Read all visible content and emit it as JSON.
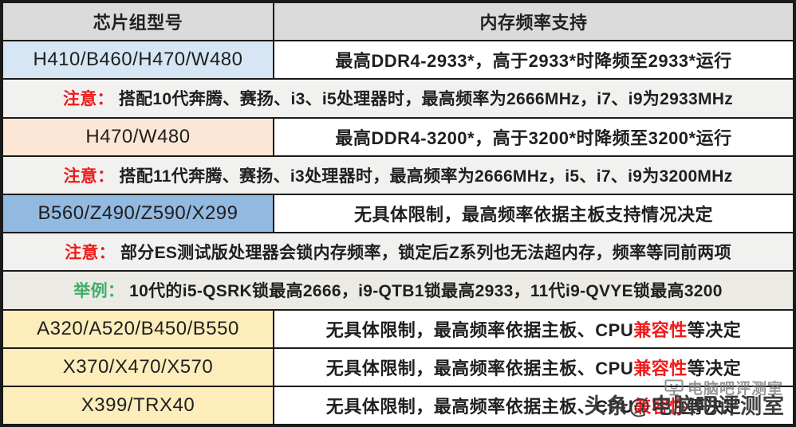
{
  "colors": {
    "border": "#1a1a1a",
    "header_bg": "#dbdbdb",
    "note_bg": "#f1f1f0",
    "example_bg": "#ebeae4",
    "light_blue": "#d6e6f4",
    "peach": "#fce6d5",
    "mid_blue": "#92b9e0",
    "yellow": "#fcedbb",
    "red": "#ee1b1b",
    "green": "#3fae6a",
    "text": "#1f1f1f"
  },
  "table": {
    "header": {
      "left": "芯片组型号",
      "right": "内存频率支持"
    },
    "rows": [
      {
        "type": "data",
        "model": "H410/B460/H470/W480",
        "model_bg": "#d6e6f4",
        "segments": [
          {
            "text": "最高DDR4-2933*，高于2933*时降频至2933*运行"
          }
        ]
      },
      {
        "type": "note",
        "label": "注意：",
        "label_color": "#ee1b1b",
        "segments": [
          {
            "text": "搭配10代奔腾、赛扬、i3、i5处理器时，最高频率为2666MHz，i7、i9为2933MHz"
          }
        ]
      },
      {
        "type": "data",
        "model": "H470/W480",
        "model_bg": "#fce6d5",
        "segments": [
          {
            "text": "最高DDR4-3200*，高于3200*时降频至3200*运行"
          }
        ]
      },
      {
        "type": "note",
        "label": "注意：",
        "label_color": "#ee1b1b",
        "segments": [
          {
            "text": "搭配11代奔腾、赛扬、i3处理器时，最高频率为2666MHz，i5、i7、i9为3200MHz"
          }
        ]
      },
      {
        "type": "data",
        "model": "B560/Z490/Z590/X299",
        "model_bg": "#92b9e0",
        "segments": [
          {
            "text": "无具体限制，最高频率依据主板支持情况决定"
          }
        ]
      },
      {
        "type": "note",
        "label": "注意：",
        "label_color": "#ee1b1b",
        "segments": [
          {
            "text": "部分ES测试版处理器会锁内存频率，锁定后Z系列也无法超内存，频率等同前两项"
          }
        ]
      },
      {
        "type": "note",
        "label": "举例：",
        "label_color": "#3fae6a",
        "bg": "#ebeae4",
        "segments": [
          {
            "text": "10代的i5-QSRK锁最高2666，i9-QTB1锁最高2933，11代i9-QVYE锁最高3200"
          }
        ]
      },
      {
        "type": "data",
        "model": "A320/A520/B450/B550",
        "model_bg": "#fcedbb",
        "segments": [
          {
            "text": "无具体限制，最高频率依据主板、CPU"
          },
          {
            "text": "兼容性",
            "color": "#ee1b1b"
          },
          {
            "text": "等决定"
          }
        ]
      },
      {
        "type": "data",
        "model": "X370/X470/X570",
        "model_bg": "#fcedbb",
        "segments": [
          {
            "text": "无具体限制，最高频率依据主板、CPU"
          },
          {
            "text": "兼容性",
            "color": "#ee1b1b"
          },
          {
            "text": "等决定"
          }
        ]
      },
      {
        "type": "data",
        "model": "X399/TRX40",
        "model_bg": "#fcedbb",
        "segments": [
          {
            "text": "无具体限制，最高频率依据主板、CPU"
          },
          {
            "text": "兼容性",
            "color": "#ee1b1b"
          },
          {
            "text": "等决定"
          }
        ]
      }
    ]
  },
  "watermark": {
    "grey_text": "电脑吧评测室",
    "dark_text": "头条@电脑吧评测室",
    "icon": "monitor-icon"
  }
}
